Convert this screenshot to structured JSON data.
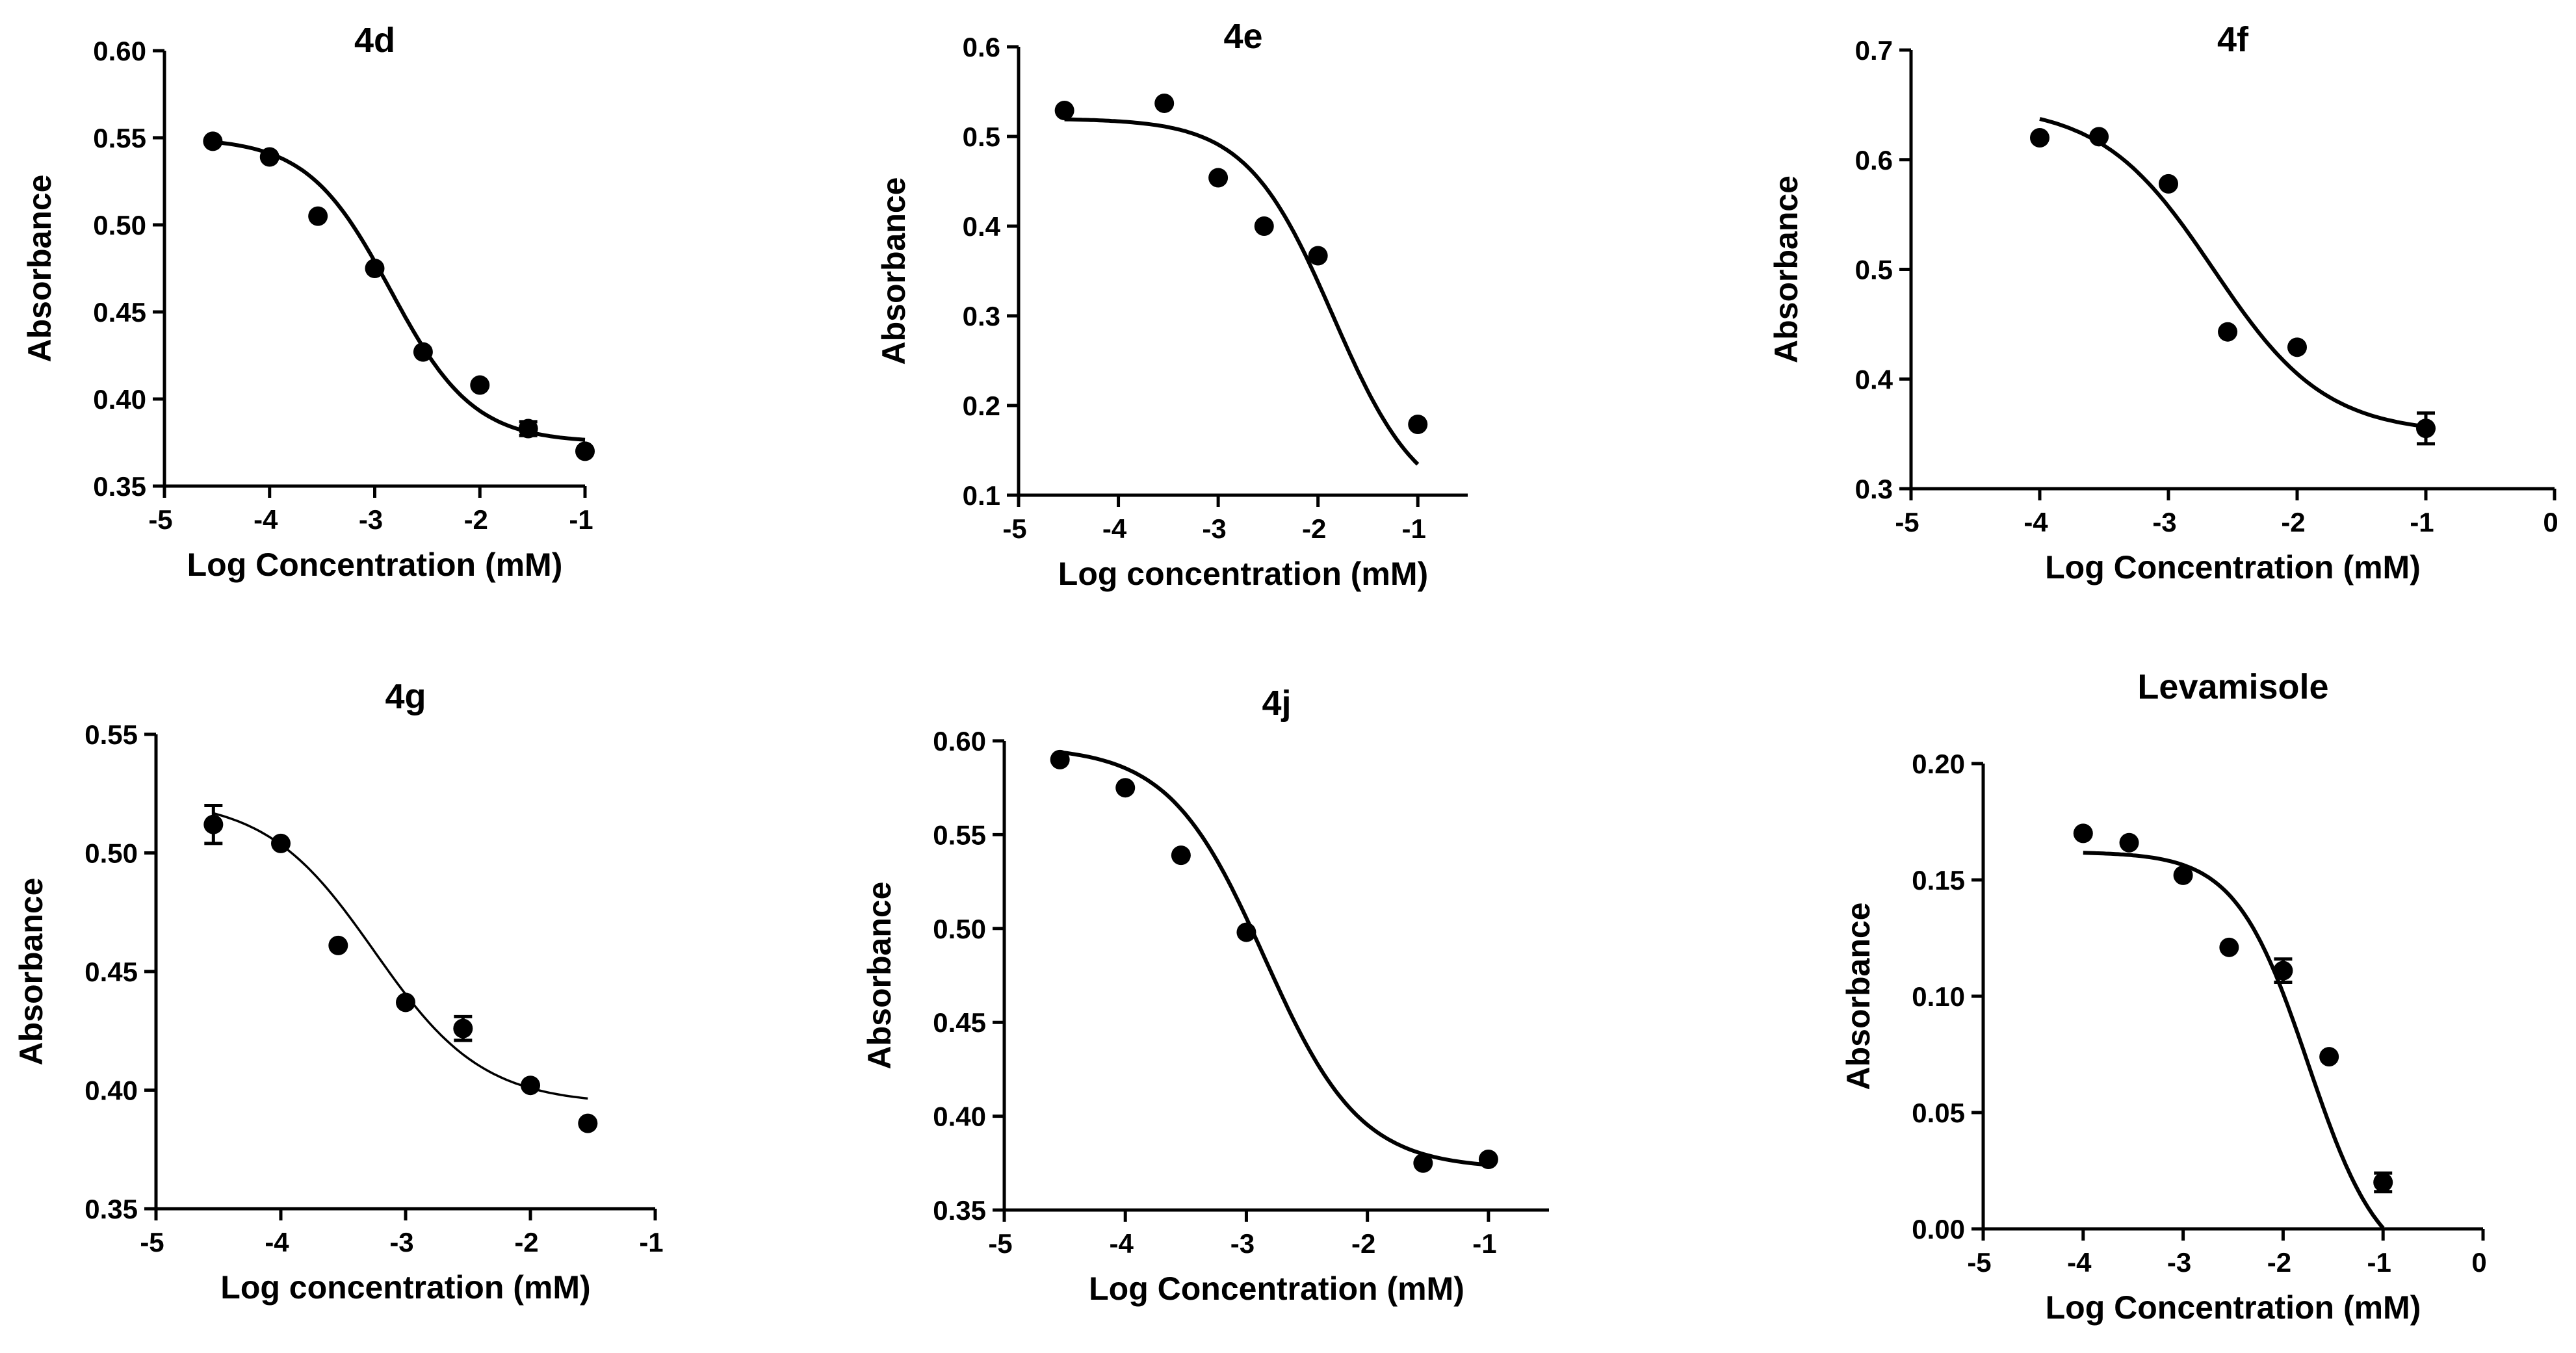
{
  "chart_data": [
    {
      "type": "scatter",
      "title": "4d",
      "xlabel": "Log Concentration  (mM)",
      "ylabel": "Absorbance",
      "xlim": [
        -5,
        -1
      ],
      "ylim": [
        0.35,
        0.6
      ],
      "xticks": [
        -5,
        -4,
        -3,
        -2,
        -1
      ],
      "xtick_labels": [
        "-5",
        "-4",
        "-3",
        "-2",
        "-1"
      ],
      "yticks": [
        0.35,
        0.4,
        0.45,
        0.5,
        0.55,
        0.6
      ],
      "ytick_labels": [
        "0.35",
        "0.40",
        "0.45",
        "0.50",
        "0.55",
        "0.60"
      ],
      "points": [
        {
          "x": -4.54,
          "y": 0.548
        },
        {
          "x": -4.0,
          "y": 0.539
        },
        {
          "x": -3.54,
          "y": 0.505
        },
        {
          "x": -3.0,
          "y": 0.475
        },
        {
          "x": -2.54,
          "y": 0.427
        },
        {
          "x": -2.0,
          "y": 0.408
        },
        {
          "x": -1.54,
          "y": 0.383,
          "err": 0.004
        },
        {
          "x": -1.0,
          "y": 0.37
        }
      ],
      "fit": {
        "model": "sigmoid",
        "bottom": 0.375,
        "top": 0.55,
        "logIC50": -2.85,
        "hill": 1.1,
        "x_range": [
          -4.54,
          -1.0
        ]
      }
    },
    {
      "type": "scatter",
      "title": "4e",
      "xlabel": "Log concentration (mM)",
      "ylabel": "Absorbance",
      "xlim": [
        -5,
        -0.5
      ],
      "ylim": [
        0.1,
        0.6
      ],
      "xticks": [
        -5,
        -4,
        -3,
        -2,
        -1
      ],
      "xtick_labels": [
        "-5",
        "-4",
        "-3",
        "-2",
        "-1"
      ],
      "yticks": [
        0.1,
        0.2,
        0.3,
        0.4,
        0.5,
        0.6
      ],
      "ytick_labels": [
        "0.1",
        "0.2",
        "0.3",
        "0.4",
        "0.5",
        "0.6"
      ],
      "points": [
        {
          "x": -4.54,
          "y": 0.529
        },
        {
          "x": -3.54,
          "y": 0.537
        },
        {
          "x": -3.0,
          "y": 0.454
        },
        {
          "x": -2.54,
          "y": 0.4
        },
        {
          "x": -2.0,
          "y": 0.367
        },
        {
          "x": -1.0,
          "y": 0.179
        }
      ],
      "fit": {
        "model": "sigmoid",
        "bottom": 0.08,
        "top": 0.52,
        "logIC50": -1.85,
        "hill": 1.0,
        "x_range": [
          -4.54,
          -1.0
        ]
      }
    },
    {
      "type": "scatter",
      "title": "4f",
      "xlabel": "Log Concentration  (mM)",
      "ylabel": "Absorbance",
      "xlim": [
        -5,
        0
      ],
      "ylim": [
        0.3,
        0.7
      ],
      "xticks": [
        -5,
        -4,
        -3,
        -2,
        -1,
        0
      ],
      "xtick_labels": [
        "-5",
        "-4",
        "-3",
        "-2",
        "-1",
        "0"
      ],
      "yticks": [
        0.3,
        0.4,
        0.5,
        0.6,
        0.7
      ],
      "ytick_labels": [
        "0.3",
        "0.4",
        "0.5",
        "0.6",
        "0.7"
      ],
      "points": [
        {
          "x": -4.0,
          "y": 0.62
        },
        {
          "x": -3.54,
          "y": 0.621
        },
        {
          "x": -3.0,
          "y": 0.578
        },
        {
          "x": -2.54,
          "y": 0.443
        },
        {
          "x": -2.0,
          "y": 0.429
        },
        {
          "x": -1.0,
          "y": 0.355,
          "err": 0.014
        }
      ],
      "fit": {
        "model": "sigmoid",
        "bottom": 0.35,
        "top": 0.65,
        "logIC50": -2.65,
        "hill": 1.0,
        "x_range": [
          -4.0,
          -1.0
        ]
      }
    },
    {
      "type": "scatter",
      "title": "4g",
      "xlabel": "Log concentration (mM)",
      "ylabel": "Absorbance",
      "xlim": [
        -5,
        -1
      ],
      "ylim": [
        0.35,
        0.55
      ],
      "xticks": [
        -5,
        -4,
        -3,
        -2,
        -1
      ],
      "xtick_labels": [
        "-5",
        "-4",
        "-3",
        "-2",
        "-1"
      ],
      "yticks": [
        0.35,
        0.4,
        0.45,
        0.5,
        0.55
      ],
      "ytick_labels": [
        "0.35",
        "0.40",
        "0.45",
        "0.50",
        "0.55"
      ],
      "points": [
        {
          "x": -4.54,
          "y": 0.512,
          "err": 0.008
        },
        {
          "x": -4.0,
          "y": 0.504
        },
        {
          "x": -3.54,
          "y": 0.461
        },
        {
          "x": -3.0,
          "y": 0.437
        },
        {
          "x": -2.54,
          "y": 0.426,
          "err": 0.005
        },
        {
          "x": -2.0,
          "y": 0.402
        },
        {
          "x": -1.54,
          "y": 0.386
        }
      ],
      "fit": {
        "model": "sigmoid",
        "bottom": 0.394,
        "top": 0.523,
        "logIC50": -3.25,
        "hill": 1.0,
        "x_range": [
          -4.54,
          -1.54
        ],
        "thin": true
      }
    },
    {
      "type": "scatter",
      "title": "4j",
      "xlabel": "Log Concentration  (mM)",
      "ylabel": "Absorbance",
      "xlim": [
        -5,
        -0.5
      ],
      "ylim": [
        0.35,
        0.6
      ],
      "xticks": [
        -5,
        -4,
        -3,
        -2,
        -1
      ],
      "xtick_labels": [
        "-5",
        "-4",
        "-3",
        "-2",
        "-1"
      ],
      "yticks": [
        0.35,
        0.4,
        0.45,
        0.5,
        0.55,
        0.6
      ],
      "ytick_labels": [
        "0.35",
        "0.40",
        "0.45",
        "0.50",
        "0.55",
        "0.60"
      ],
      "points": [
        {
          "x": -4.54,
          "y": 0.59
        },
        {
          "x": -4.0,
          "y": 0.575
        },
        {
          "x": -3.54,
          "y": 0.539
        },
        {
          "x": -3.0,
          "y": 0.498
        },
        {
          "x": -1.54,
          "y": 0.375
        },
        {
          "x": -1.0,
          "y": 0.377
        }
      ],
      "fit": {
        "model": "sigmoid",
        "bottom": 0.372,
        "top": 0.597,
        "logIC50": -2.85,
        "hill": 1.1,
        "x_range": [
          -4.54,
          -1.0
        ]
      }
    },
    {
      "type": "scatter",
      "title": "Levamisole",
      "xlabel": "Log Concentration  (mM)",
      "ylabel": "Absorbance",
      "xlim": [
        -5,
        0
      ],
      "ylim": [
        0.0,
        0.2
      ],
      "xticks": [
        -5,
        -4,
        -3,
        -2,
        -1,
        0
      ],
      "xtick_labels": [
        "-5",
        "-4",
        "-3",
        "-2",
        "-1",
        "0"
      ],
      "yticks": [
        0.0,
        0.05,
        0.1,
        0.15,
        0.2
      ],
      "ytick_labels": [
        "0.00",
        "0.05",
        "0.10",
        "0.15",
        "0.20"
      ],
      "points": [
        {
          "x": -4.0,
          "y": 0.17
        },
        {
          "x": -3.54,
          "y": 0.166
        },
        {
          "x": -3.0,
          "y": 0.152
        },
        {
          "x": -2.54,
          "y": 0.121
        },
        {
          "x": -2.0,
          "y": 0.111,
          "err": 0.005
        },
        {
          "x": -1.54,
          "y": 0.074
        },
        {
          "x": -1.0,
          "y": 0.02,
          "err": 0.004
        }
      ],
      "fit": {
        "model": "sigmoid",
        "bottom": -0.02,
        "top": 0.162,
        "logIC50": -1.75,
        "hill": 1.2,
        "x_range": [
          -4.0,
          -1.0
        ]
      }
    }
  ]
}
